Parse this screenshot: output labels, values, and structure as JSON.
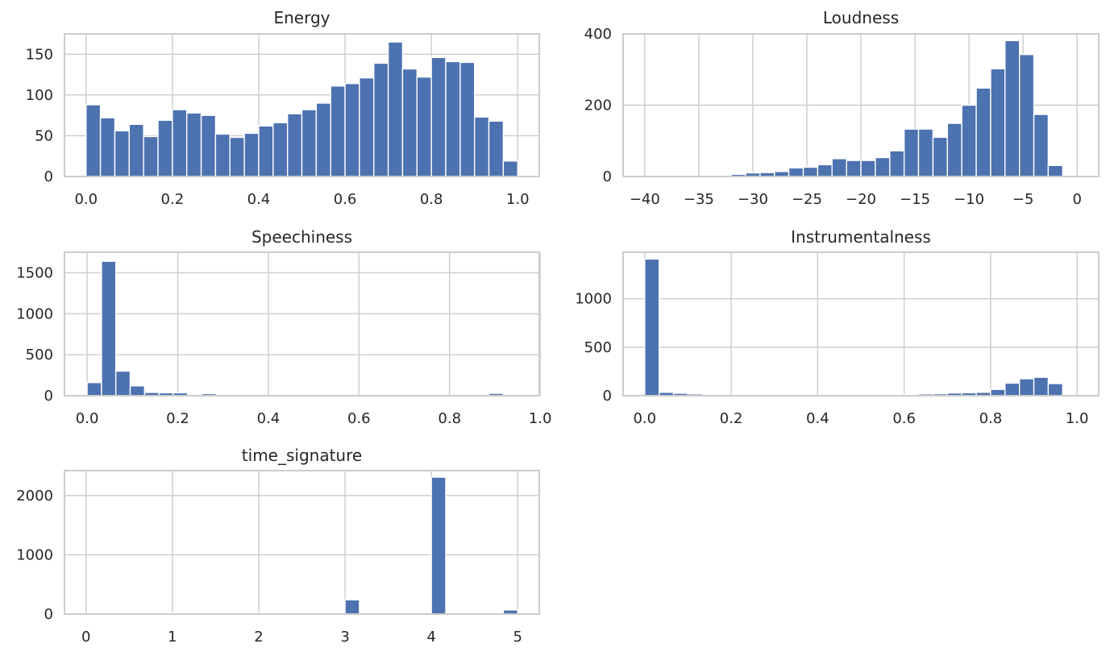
{
  "chart_data": [
    {
      "type": "bar",
      "title": "Energy",
      "xlim": [
        -0.05,
        1.05
      ],
      "ylim": [
        0,
        175
      ],
      "xticks": [
        0.0,
        0.2,
        0.4,
        0.6,
        0.8,
        1.0
      ],
      "xtick_labels": [
        "0.0",
        "0.2",
        "0.4",
        "0.6",
        "0.8",
        "1.0"
      ],
      "yticks": [
        0,
        50,
        100,
        150
      ],
      "ytick_labels": [
        "0",
        "50",
        "100",
        "150"
      ],
      "bin_edges": [
        0.0,
        0.0333,
        0.0667,
        0.1,
        0.1333,
        0.1667,
        0.2,
        0.2333,
        0.2667,
        0.3,
        0.3333,
        0.3667,
        0.4,
        0.4333,
        0.4667,
        0.5,
        0.5333,
        0.5667,
        0.6,
        0.6333,
        0.6667,
        0.7,
        0.7333,
        0.7667,
        0.8,
        0.8333,
        0.8667,
        0.9,
        0.9333,
        0.9667,
        1.0
      ],
      "counts": [
        88,
        72,
        56,
        64,
        49,
        69,
        82,
        78,
        75,
        52,
        48,
        53,
        62,
        66,
        77,
        82,
        90,
        111,
        114,
        121,
        139,
        165,
        132,
        122,
        146,
        141,
        140,
        73,
        68,
        19
      ]
    },
    {
      "type": "bar",
      "title": "Loudness",
      "xlim": [
        -42,
        2
      ],
      "ylim": [
        0,
        400
      ],
      "xticks": [
        -40,
        -35,
        -30,
        -25,
        -20,
        -15,
        -10,
        -5,
        0
      ],
      "xtick_labels": [
        "−40",
        "−35",
        "−30",
        "−25",
        "−20",
        "−15",
        "−10",
        "−5",
        "0"
      ],
      "yticks": [
        0,
        200,
        400
      ],
      "ytick_labels": [
        "0",
        "200",
        "400"
      ],
      "bin_edges": [
        -40.0,
        -38.67,
        -37.33,
        -36.0,
        -34.67,
        -33.33,
        -32.0,
        -30.67,
        -29.33,
        -28.0,
        -26.67,
        -25.33,
        -24.0,
        -22.67,
        -21.33,
        -20.0,
        -18.67,
        -17.33,
        -16.0,
        -14.67,
        -13.33,
        -12.0,
        -10.67,
        -9.33,
        -8.0,
        -6.67,
        -5.33,
        -4.0,
        -2.67,
        -1.33,
        0.0
      ],
      "counts": [
        1,
        0,
        0,
        0,
        1,
        1,
        6,
        10,
        11,
        14,
        24,
        26,
        33,
        50,
        45,
        45,
        53,
        72,
        133,
        133,
        110,
        149,
        200,
        248,
        302,
        381,
        342,
        174,
        31,
        0
      ]
    },
    {
      "type": "bar",
      "title": "Speechiness",
      "xlim": [
        -0.05,
        0.998
      ],
      "ylim": [
        0,
        1750
      ],
      "xticks": [
        0.0,
        0.2,
        0.4,
        0.6,
        0.8,
        1.0
      ],
      "xtick_labels": [
        "0.0",
        "0.2",
        "0.4",
        "0.6",
        "0.8",
        "1.0"
      ],
      "yticks": [
        0,
        500,
        1000,
        1500
      ],
      "ytick_labels": [
        "0",
        "500",
        "1000",
        "1500"
      ],
      "bin_edges": [
        0.0,
        0.0317,
        0.0633,
        0.095,
        0.1267,
        0.1583,
        0.19,
        0.2217,
        0.2533,
        0.285,
        0.3167,
        0.3483,
        0.38,
        0.4117,
        0.4433,
        0.475,
        0.5067,
        0.5383,
        0.57,
        0.6017,
        0.6333,
        0.665,
        0.6967,
        0.7283,
        0.76,
        0.7917,
        0.8233,
        0.855,
        0.8867,
        0.9183,
        0.95
      ],
      "counts": [
        160,
        1640,
        300,
        120,
        40,
        35,
        35,
        15,
        25,
        12,
        5,
        3,
        2,
        2,
        2,
        2,
        1,
        1,
        1,
        1,
        1,
        1,
        1,
        1,
        1,
        1,
        1,
        1,
        28,
        15
      ]
    },
    {
      "type": "bar",
      "title": "Instrumentalness",
      "xlim": [
        -0.05,
        1.05
      ],
      "ylim": [
        0,
        1480
      ],
      "xticks": [
        0.0,
        0.2,
        0.4,
        0.6,
        0.8,
        1.0
      ],
      "xtick_labels": [
        "0.0",
        "0.2",
        "0.4",
        "0.6",
        "0.8",
        "1.0"
      ],
      "yticks": [
        0,
        500,
        1000
      ],
      "ytick_labels": [
        "0",
        "500",
        "1000"
      ],
      "bin_edges": [
        0.0,
        0.0333,
        0.0667,
        0.1,
        0.1333,
        0.1667,
        0.2,
        0.2333,
        0.2667,
        0.3,
        0.3333,
        0.3667,
        0.4,
        0.4333,
        0.4667,
        0.5,
        0.5333,
        0.5667,
        0.6,
        0.6333,
        0.6667,
        0.7,
        0.7333,
        0.7667,
        0.8,
        0.8333,
        0.8667,
        0.9,
        0.9333,
        0.9667,
        1.0
      ],
      "counts": [
        1410,
        35,
        25,
        18,
        8,
        5,
        5,
        4,
        4,
        4,
        4,
        4,
        4,
        5,
        5,
        6,
        12,
        8,
        14,
        18,
        20,
        28,
        30,
        35,
        65,
        130,
        175,
        190,
        125,
        3
      ]
    },
    {
      "type": "bar",
      "title": "time_signature",
      "xlim": [
        -0.25,
        5.25
      ],
      "ylim": [
        0,
        2420
      ],
      "xticks": [
        0,
        1,
        2,
        3,
        4,
        5
      ],
      "xtick_labels": [
        "0",
        "1",
        "2",
        "3",
        "4",
        "5"
      ],
      "yticks": [
        0,
        1000,
        2000
      ],
      "ytick_labels": [
        "0",
        "1000",
        "2000"
      ],
      "bin_edges": [
        0.0,
        0.1667,
        0.3333,
        0.5,
        0.6667,
        0.8333,
        1.0,
        1.1667,
        1.3333,
        1.5,
        1.6667,
        1.8333,
        2.0,
        2.1667,
        2.3333,
        2.5,
        2.6667,
        2.8333,
        3.0,
        3.1667,
        3.3333,
        3.5,
        3.6667,
        3.8333,
        4.0,
        4.1667,
        4.3333,
        4.5,
        4.6667,
        4.8333,
        5.0
      ],
      "counts": [
        3,
        0,
        0,
        0,
        0,
        0,
        22,
        0,
        0,
        0,
        0,
        0,
        0,
        0,
        0,
        0,
        0,
        0,
        240,
        0,
        0,
        0,
        0,
        0,
        2310,
        0,
        0,
        0,
        0,
        70
      ]
    }
  ]
}
